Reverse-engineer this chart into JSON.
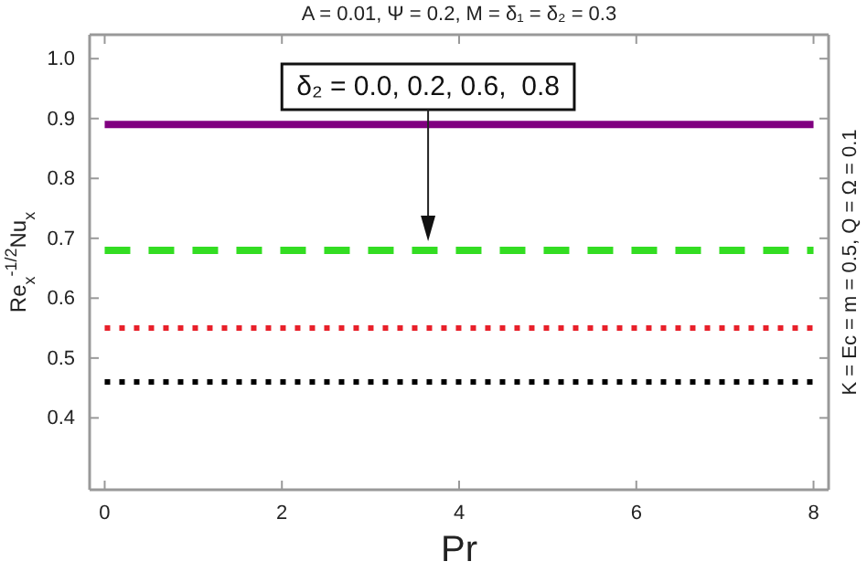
{
  "chart_data": {
    "type": "line",
    "title": "A = 0.01, Ψ = 0.2, M = δ₁ = δ₂ = 0.3",
    "xlabel": "Pr",
    "ylabel": "Re$_{x}$$^{-1/2}$Nu$_{x}$",
    "annotations": [
      "δ₂ = 0.0, 0.2, 0.6,  0.8",
      "K = Ec = m = 0.5, Q = Ω = 0.1"
    ],
    "x": [
      0,
      8
    ],
    "series": [
      {
        "color": "#800080",
        "values": [
          0.89,
          0.89
        ],
        "line_style": "solid"
      },
      {
        "color": "#33dd22",
        "values": [
          0.68,
          0.68
        ],
        "line_style": "dashed"
      },
      {
        "color": "#e8202a",
        "values": [
          0.55,
          0.55
        ],
        "line_style": "dotted"
      },
      {
        "color": "#000000",
        "values": [
          0.46,
          0.46
        ],
        "line_style": "dotted"
      }
    ],
    "xlim": [
      -0.17,
      8.17
    ],
    "xticks": [
      0,
      2,
      4,
      6,
      8
    ],
    "ylim": [
      0.28,
      1.04
    ],
    "yticks": [
      {
        "value": 0.4,
        "label": "0.4"
      },
      {
        "value": 0.5,
        "label": "0.5"
      },
      {
        "value": 0.6,
        "label": "0.6"
      },
      {
        "value": 0.7,
        "label": "0.7"
      },
      {
        "value": 0.8,
        "label": "0.8"
      },
      {
        "value": 0.9,
        "label": "0.9"
      },
      {
        "value": 1.0,
        "label": "1.0"
      }
    ],
    "grid": false,
    "marker": "none"
  }
}
